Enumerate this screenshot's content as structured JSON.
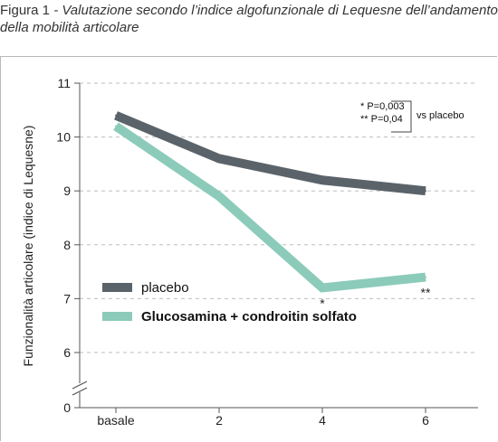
{
  "caption": {
    "lead": "Figura 1",
    "rest": " - Valutazione secondo l’indice algofunzionale di Lequesne dell’andamento della mobilità articolare"
  },
  "chart_data": {
    "type": "line",
    "categories": [
      "basale",
      "2",
      "4",
      "6"
    ],
    "x": [
      0,
      2,
      4,
      6
    ],
    "ylabel": "Funzionalità articolare (indice di Lequesne)",
    "xlabel": "",
    "yticks": [
      0,
      6,
      7,
      8,
      9,
      10,
      11
    ],
    "ylim": [
      6,
      11
    ],
    "axis_break": true,
    "grid": "dashed horizontal",
    "legend_placement": "lower-left",
    "series": [
      {
        "name": "placebo",
        "values": [
          10.4,
          9.6,
          9.2,
          9.0
        ],
        "color": "#5b636a"
      },
      {
        "name": "Glucosamina + condroitin solfato",
        "values": [
          10.2,
          8.9,
          7.2,
          7.4
        ],
        "color": "#8ccbb9"
      }
    ],
    "point_annotations": [
      {
        "x": 4,
        "text": "*"
      },
      {
        "x": 6,
        "text": "**"
      }
    ],
    "significance_box": {
      "lines": [
        "*  P=0,003",
        "** P=0,04"
      ],
      "label": "vs placebo"
    }
  }
}
